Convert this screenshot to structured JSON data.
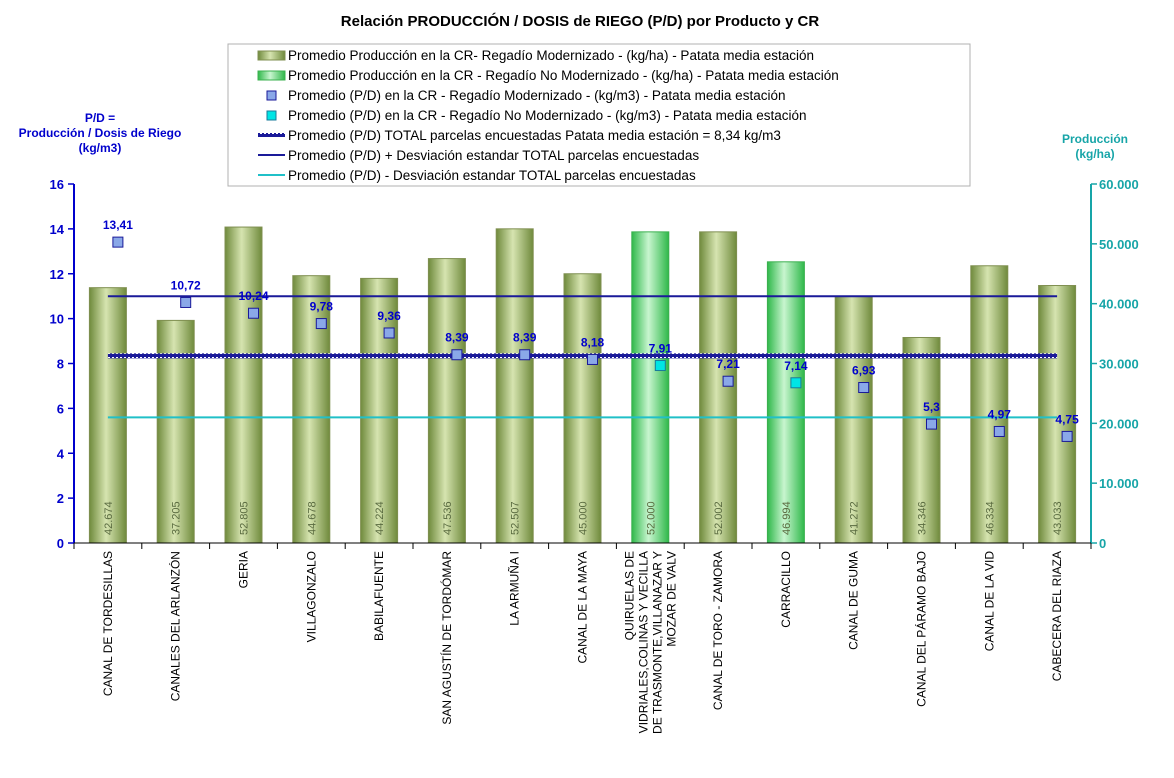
{
  "chart_data": {
    "type": "bar",
    "title": "Relación PRODUCCIÓN / DOSIS de RIEGO (P/D) por Producto y CR",
    "ylabel_left": [
      "P/D =",
      "Producción  / Dosis  de Riego",
      "(kg/m3)"
    ],
    "ylabel_right": [
      "Producción",
      "(kg/ha)"
    ],
    "ylim_left": [
      0,
      16
    ],
    "ylim_right": [
      0,
      60000
    ],
    "left_ticks": [
      "0",
      "2",
      "4",
      "6",
      "8",
      "10",
      "12",
      "14",
      "16"
    ],
    "right_ticks": [
      "0",
      "10.000",
      "20.000",
      "30.000",
      "40.000",
      "50.000",
      "60.000"
    ],
    "categories": [
      [
        "CANAL DE TORDESILLAS"
      ],
      [
        "CANALES DEL ARLANZÓN"
      ],
      [
        "GERIA"
      ],
      [
        "VILLAGONZALO"
      ],
      [
        "BABILAFUENTE"
      ],
      [
        "SAN AGUSTÍN DE TORDÓMAR"
      ],
      [
        "LA ARMUÑA I"
      ],
      [
        "CANAL DE LA MAYA"
      ],
      [
        "QUIRUELAS DE",
        "VIDRIALES,COLINAS Y VECILLA",
        "DE TRASMONTE,VILLANAZAR Y",
        "MOZAR DE VALV"
      ],
      [
        "CANAL DE TORO - ZAMORA"
      ],
      [
        "CARRACILLO"
      ],
      [
        "CANAL DE GUMA"
      ],
      [
        "CANAL DEL PÁRAMO BAJO"
      ],
      [
        "CANAL DE LA VID"
      ],
      [
        "CABECERA DEL RIAZA"
      ]
    ],
    "production": [
      42674,
      37205,
      52805,
      44678,
      44224,
      47536,
      52507,
      45000,
      52000,
      52002,
      46994,
      41272,
      34346,
      46334,
      43033
    ],
    "production_labels": [
      "42.674",
      "37.205",
      "52.805",
      "44.678",
      "44.224",
      "47.536",
      "52.507",
      "45.000",
      "52.000",
      "52.002",
      "46.994",
      "41.272",
      "34.346",
      "46.334",
      "43.033"
    ],
    "modernizado": [
      true,
      true,
      true,
      true,
      true,
      true,
      true,
      true,
      false,
      true,
      false,
      true,
      true,
      true,
      true
    ],
    "pd": [
      13.41,
      10.72,
      10.24,
      9.78,
      9.36,
      8.39,
      8.39,
      8.18,
      7.91,
      7.21,
      7.14,
      6.93,
      5.3,
      4.97,
      4.75
    ],
    "pd_labels": [
      "13,41",
      "10,72",
      "10,24",
      "9,78",
      "9,36",
      "8,39",
      "8,39",
      "8,18",
      "7,91",
      "7,21",
      "7,14",
      "6,93",
      "5,3",
      "4,97",
      "4,75"
    ],
    "pd_mean": 8.34,
    "pd_mean_plus_sd": 11.0,
    "pd_mean_minus_sd": 5.6,
    "legend": [
      "Promedio Producción en la CR- Regadío Modernizado -  (kg/ha) - Patata media estación",
      "Promedio Producción en la CR - Regadío No Modernizado -  (kg/ha) - Patata media estación",
      "Promedio (P/D) en la CR - Regadío Modernizado - (kg/m3) - Patata media estación",
      "Promedio (P/D) en la CR - Regadío No Modernizado - (kg/m3) - Patata media estación",
      "Promedio (P/D) TOTAL parcelas encuestadas Patata media estación = 8,34 kg/m3",
      "Promedio (P/D) + Desviación estandar TOTAL parcelas encuestadas",
      "Promedio (P/D) - Desviación estandar TOTAL parcelas encuestadas"
    ],
    "colors": {
      "bar_modernizado": "#b7c98a",
      "bar_no_modernizado": "#7ee08a",
      "marker_modernizado": "#8aa8e8",
      "marker_no_modernizado": "#00e5e5",
      "mean_line": "#1a1a99",
      "sd_plus_line": "#1a1a99",
      "sd_minus_line": "#20c0c8",
      "left_axis": "#0000cc",
      "right_axis": "#17a5a8"
    }
  }
}
